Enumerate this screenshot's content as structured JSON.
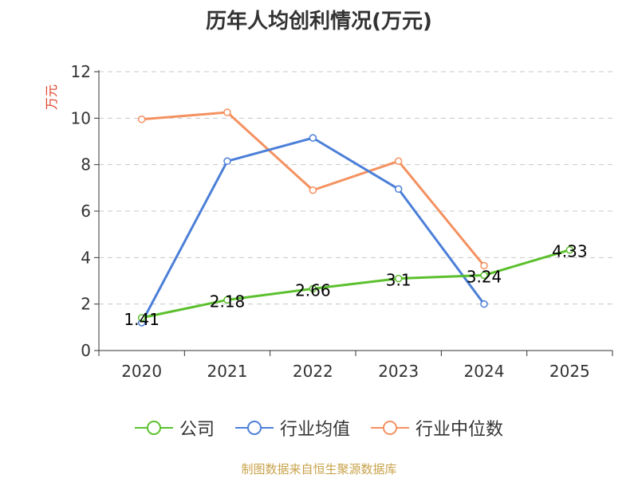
{
  "chart_data": {
    "type": "line",
    "title": "历年人均创利情况(万元)",
    "ylabel": "万元",
    "xlabel": "",
    "categories": [
      "2020",
      "2021",
      "2022",
      "2023",
      "2024",
      "2025"
    ],
    "ylim": [
      0,
      12
    ],
    "yticks": [
      0,
      2,
      4,
      6,
      8,
      10,
      12
    ],
    "grid": true,
    "legend_position": "bottom",
    "series": [
      {
        "name": "公司",
        "color": "#5cc02e",
        "values": [
          1.41,
          2.18,
          2.66,
          3.1,
          3.24,
          4.33
        ],
        "labels": [
          "1.41",
          "2.18",
          "2.66",
          "3.1",
          "3.24",
          "4.33"
        ]
      },
      {
        "name": "行业均值",
        "color": "#4c7fd8",
        "values": [
          1.2,
          8.15,
          9.15,
          6.95,
          2.0,
          null
        ]
      },
      {
        "name": "行业中位数",
        "color": "#f49160",
        "values": [
          9.95,
          10.25,
          6.9,
          8.15,
          3.65,
          null
        ]
      }
    ],
    "source": "制图数据来自恒生聚源数据库"
  }
}
